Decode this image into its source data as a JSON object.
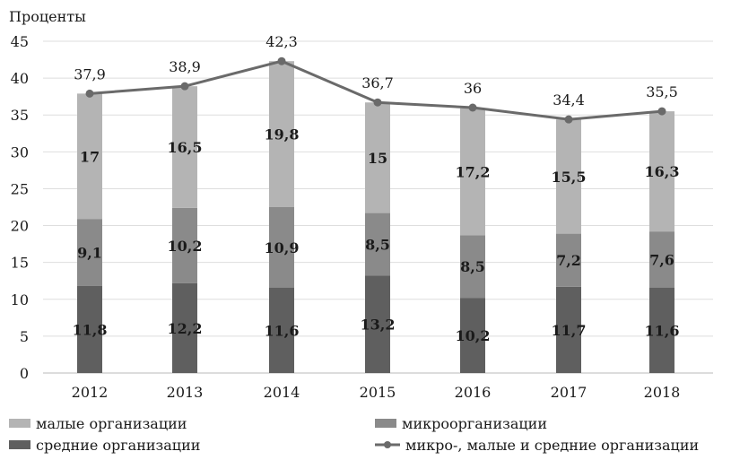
{
  "chart_data": {
    "type": "bar",
    "stacked": true,
    "ylabel": "Проценты",
    "ylim": [
      0,
      45
    ],
    "yticks": [
      0,
      5,
      10,
      15,
      20,
      25,
      30,
      35,
      40,
      45
    ],
    "grid": true,
    "categories": [
      "2012",
      "2013",
      "2014",
      "2015",
      "2016",
      "2017",
      "2018"
    ],
    "series": [
      {
        "name": "средние организации",
        "color": "#5f5f5f",
        "values": [
          "11,8",
          "12,2",
          "11,6",
          "13,2",
          "10,2",
          "11,7",
          "11,6"
        ],
        "numeric": [
          11.8,
          12.2,
          11.6,
          13.2,
          10.2,
          11.7,
          11.6
        ]
      },
      {
        "name": "микроорганизации",
        "color": "#8a8a8a",
        "values": [
          "9,1",
          "10,2",
          "10,9",
          "8,5",
          "8,5",
          "7,2",
          "7,6"
        ],
        "numeric": [
          9.1,
          10.2,
          10.9,
          8.5,
          8.5,
          7.2,
          7.6
        ]
      },
      {
        "name": "малые организации",
        "color": "#b4b4b4",
        "values": [
          "17",
          "16,5",
          "19,8",
          "15",
          "17,2",
          "15,5",
          "16,3"
        ],
        "numeric": [
          17,
          16.5,
          19.8,
          15,
          17.2,
          15.5,
          16.3
        ]
      }
    ],
    "line": {
      "name": "микро-, малые и средние организации",
      "color": "#6a6a6a",
      "values": [
        "37,9",
        "38,9",
        "42,3",
        "36,7",
        "36",
        "34,4",
        "35,5"
      ],
      "numeric": [
        37.9,
        38.9,
        42.3,
        36.7,
        36,
        34.4,
        35.5
      ]
    },
    "legend": {
      "placement": "bottom",
      "items": [
        {
          "label": "малые организации",
          "kind": "bar",
          "series": 2
        },
        {
          "label": "микроорганизации",
          "kind": "bar",
          "series": 1
        },
        {
          "label": "средние организации",
          "kind": "bar",
          "series": 0
        },
        {
          "label": "микро-, малые и средние организации",
          "kind": "line"
        }
      ]
    }
  }
}
